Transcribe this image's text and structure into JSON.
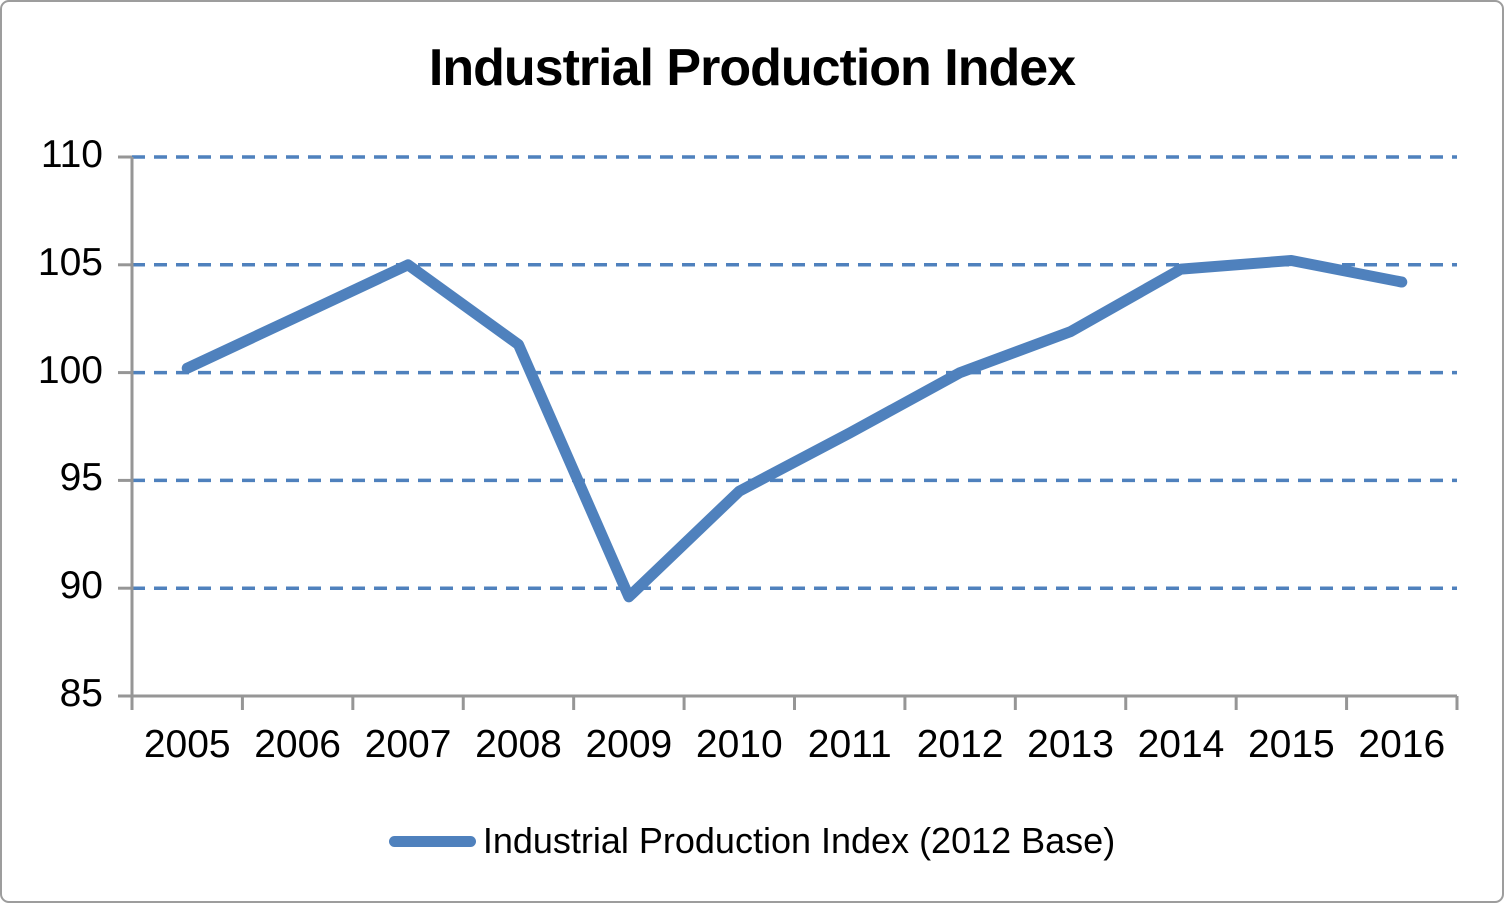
{
  "chart_data": {
    "type": "line",
    "title": "Industrial Production Index",
    "categories": [
      "2005",
      "2006",
      "2007",
      "2008",
      "2009",
      "2010",
      "2011",
      "2012",
      "2013",
      "2014",
      "2015",
      "2016"
    ],
    "series": [
      {
        "name": "Industrial Production Index (2012 Base)",
        "values": [
          100.2,
          102.6,
          105.0,
          101.3,
          89.6,
          94.5,
          97.2,
          100.0,
          101.9,
          104.8,
          105.2,
          104.2
        ]
      }
    ],
    "xlabel": "",
    "ylabel": "",
    "ylim": [
      85,
      110
    ],
    "yticks": [
      85,
      90,
      95,
      100,
      105,
      110
    ],
    "grid": "horizontal-dashed",
    "legend_position": "bottom-center",
    "colors": {
      "line": "#4F81BD",
      "gridline": "#4F81BD",
      "axis": "#969696",
      "frame_border": "#9D9D9D",
      "text": "#000000",
      "background": "#FFFFFF"
    }
  }
}
